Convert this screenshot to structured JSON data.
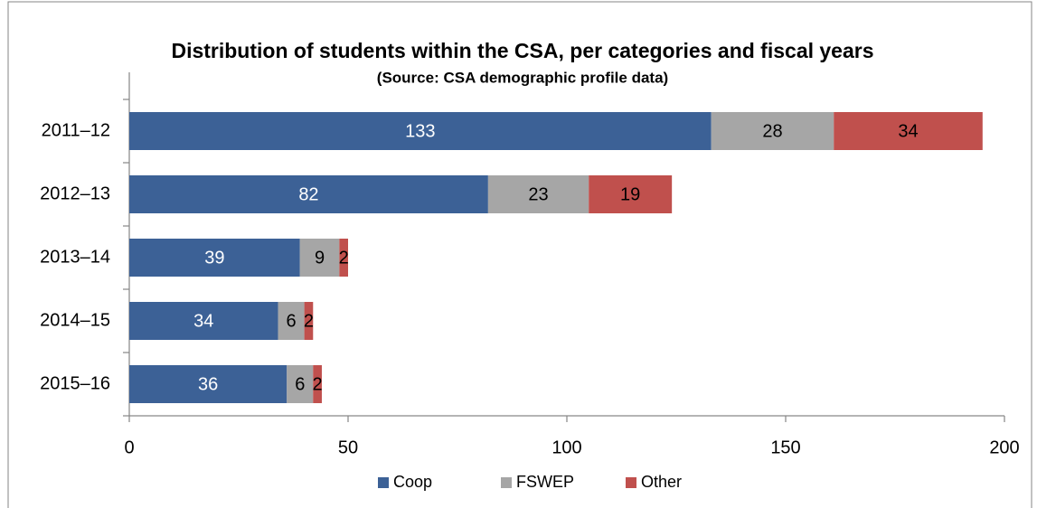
{
  "chart_data": {
    "type": "stacked-bar-horizontal",
    "title": "Distribution of students within the CSA, per categories and fiscal years",
    "subtitle": "(Source: CSA demographic profile data)",
    "categories": [
      "2011–12",
      "2012–13",
      "2013–14",
      "2014–15",
      "2015–16"
    ],
    "series": [
      {
        "name": "Coop",
        "color": "#3c6196",
        "values": [
          133,
          82,
          39,
          34,
          36
        ]
      },
      {
        "name": "FSWEP",
        "color": "#a6a6a6",
        "values": [
          28,
          23,
          9,
          6,
          6
        ]
      },
      {
        "name": "Other",
        "color": "#c0504d",
        "values": [
          34,
          19,
          2,
          2,
          2
        ]
      }
    ],
    "xlim": [
      0,
      200
    ],
    "xticks": [
      0,
      50,
      100,
      150,
      200
    ],
    "legend": "bottom"
  }
}
